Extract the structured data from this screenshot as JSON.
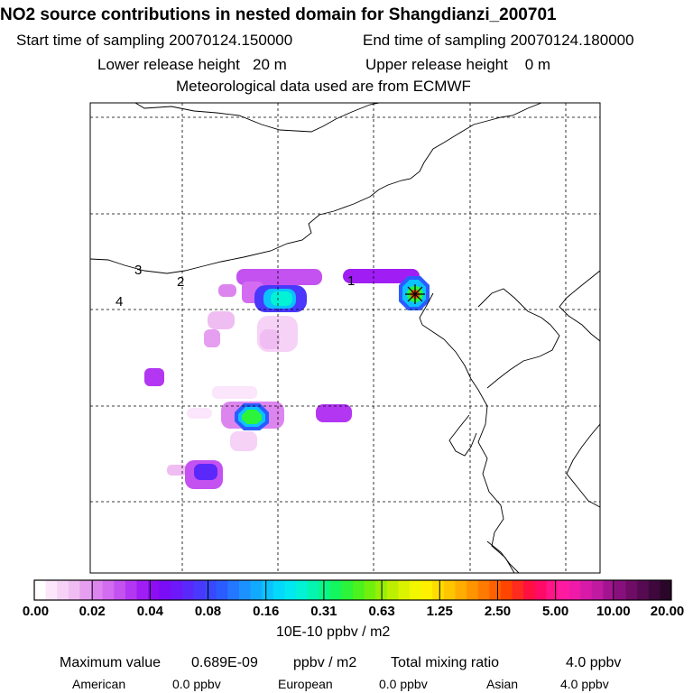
{
  "header": {
    "title": "NO2 source contributions in nested domain for Shangdianzi_200701",
    "start_label": "Start time of sampling 20070124.150000",
    "end_label": "End time of sampling 20070124.180000",
    "lower_label": "Lower release height   20 m",
    "upper_label": "Upper release height    0 m",
    "met_label": "Meteorological data used are from ECMWF"
  },
  "map": {
    "station_labels": [
      "1",
      "2",
      "3",
      "4"
    ],
    "station_marker": "asterisk-marker"
  },
  "colorbar": {
    "tick_labels": [
      "0.00",
      "0.02",
      "0.04",
      "0.08",
      "0.16",
      "0.31",
      "0.63",
      "1.25",
      "2.50",
      "5.00",
      "10.00",
      "20.00"
    ],
    "unit": "10E-10 ppbv / m2",
    "colors": [
      "#ffffff",
      "#fbe6fb",
      "#f7d2f7",
      "#f0bdf2",
      "#e69ef0",
      "#dd85ef",
      "#d36cf0",
      "#c452f0",
      "#b337f2",
      "#a01ef3",
      "#8d0df4",
      "#7a0cf6",
      "#6c18f8",
      "#5a28fa",
      "#4a38fc",
      "#3848fe",
      "#2b5cff",
      "#2378ff",
      "#1b92ff",
      "#12aaff",
      "#0bc2ff",
      "#05d9fb",
      "#02e8f0",
      "#02f2d6",
      "#05f5b0",
      "#0af787",
      "#13f65e",
      "#2bf43a",
      "#4cf21d",
      "#72f00d",
      "#98ef05",
      "#bdef02",
      "#dcf300",
      "#f2f700",
      "#fff000",
      "#ffdc00",
      "#ffc600",
      "#ffad00",
      "#ff9400",
      "#ff7a00",
      "#ff6000",
      "#ff4500",
      "#ff2a20",
      "#ff1040",
      "#ff0a66",
      "#ff1588",
      "#ff1aa0",
      "#f01aa8",
      "#d81aa8",
      "#c01aa0",
      "#a41490",
      "#88107c",
      "#6e0c66",
      "#560a52",
      "#3e083c",
      "#2a0628"
    ]
  },
  "footer": {
    "max_label": "Maximum value",
    "max_value": "0.689E-09",
    "max_unit": "ppbv / m2",
    "total_label": "Total mixing ratio",
    "total_value": "4.0 ppbv",
    "sources": [
      {
        "name": "American",
        "value": "0.0 ppbv"
      },
      {
        "name": "European",
        "value": "0.0 ppbv"
      },
      {
        "name": "Asian",
        "value": "4.0 ppbv"
      }
    ]
  }
}
